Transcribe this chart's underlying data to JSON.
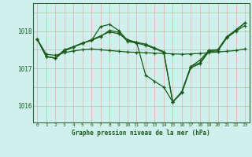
{
  "xlabel": "Graphe pression niveau de la mer (hPa)",
  "bg_color": "#d0f0ee",
  "line_color": "#1a5c1a",
  "yticks": [
    1016,
    1017,
    1018
  ],
  "ylim": [
    1015.55,
    1018.75
  ],
  "xlim": [
    -0.5,
    23.5
  ],
  "series": [
    [
      1017.78,
      1017.38,
      1017.35,
      1017.42,
      1017.47,
      1017.5,
      1017.52,
      1017.5,
      1017.48,
      1017.46,
      1017.44,
      1017.43,
      1017.42,
      1017.41,
      1017.4,
      1017.39,
      1017.38,
      1017.39,
      1017.4,
      1017.42,
      1017.44,
      1017.46,
      1017.48,
      1017.52
    ],
    [
      1017.78,
      1017.32,
      1017.28,
      1017.5,
      1017.58,
      1017.68,
      1017.75,
      1017.85,
      1018.02,
      1017.97,
      1017.72,
      1017.68,
      1017.62,
      1017.53,
      1017.43,
      1016.1,
      1016.34,
      1017.02,
      1017.12,
      1017.45,
      1017.47,
      1017.82,
      1018.0,
      1018.15
    ],
    [
      1017.78,
      1017.32,
      1017.27,
      1017.47,
      1017.58,
      1017.68,
      1017.75,
      1018.12,
      1018.18,
      1018.02,
      1017.75,
      1017.7,
      1017.65,
      1017.55,
      1017.45,
      1016.1,
      1016.37,
      1017.05,
      1017.15,
      1017.48,
      1017.5,
      1017.85,
      1018.03,
      1018.22
    ],
    [
      1017.78,
      1017.32,
      1017.27,
      1017.47,
      1017.57,
      1017.67,
      1017.77,
      1017.87,
      1017.98,
      1017.93,
      1017.77,
      1017.7,
      1016.82,
      1016.65,
      1016.5,
      1016.1,
      1016.37,
      1017.05,
      1017.22,
      1017.48,
      1017.5,
      1017.85,
      1018.03,
      1018.22
    ]
  ]
}
